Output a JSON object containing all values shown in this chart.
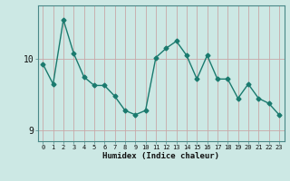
{
  "xlabel": "Humidex (Indice chaleur)",
  "x": [
    0,
    1,
    2,
    3,
    4,
    5,
    6,
    7,
    8,
    9,
    10,
    11,
    12,
    13,
    14,
    15,
    16,
    17,
    18,
    19,
    20,
    21,
    22,
    23
  ],
  "y": [
    9.93,
    9.65,
    10.55,
    10.08,
    9.75,
    9.63,
    9.63,
    9.48,
    9.28,
    9.22,
    9.28,
    10.02,
    10.15,
    10.25,
    10.05,
    9.72,
    10.05,
    9.72,
    9.72,
    9.45,
    9.65,
    9.45,
    9.38,
    9.22
  ],
  "line_color": "#1a7a6e",
  "marker": "D",
  "marker_size": 2.5,
  "background_color": "#cce8e4",
  "ylim": [
    8.85,
    10.75
  ],
  "yticks": [
    9,
    10
  ],
  "xlim": [
    -0.5,
    23.5
  ],
  "xticks": [
    0,
    1,
    2,
    3,
    4,
    5,
    6,
    7,
    8,
    9,
    10,
    11,
    12,
    13,
    14,
    15,
    16,
    17,
    18,
    19,
    20,
    21,
    22,
    23
  ]
}
